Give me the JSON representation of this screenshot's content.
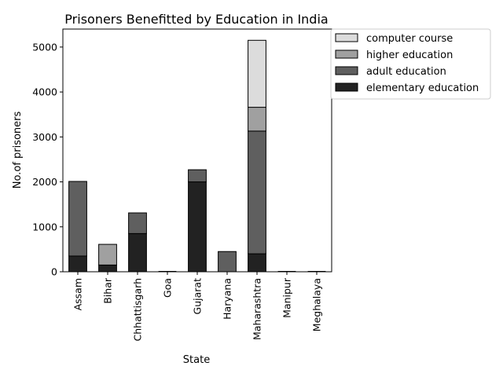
{
  "chart_data": {
    "type": "bar",
    "stacked": true,
    "title": "Prisoners Benefitted by Education in India",
    "xlabel": "State",
    "ylabel": "No.of prisoners",
    "categories": [
      "Assam",
      "Bihar",
      "Chhattisgarh",
      "Goa",
      "Gujarat",
      "Haryana",
      "Maharashtra",
      "Manipur",
      "Meghalaya"
    ],
    "ylim": [
      0,
      5400
    ],
    "yticks": [
      0,
      1000,
      2000,
      3000,
      4000,
      5000
    ],
    "grid": false,
    "legend_position": "outside-top-right",
    "series": [
      {
        "name": "elementary education",
        "color": "#222222",
        "values": [
          350,
          150,
          850,
          0,
          2000,
          0,
          400,
          0,
          0
        ]
      },
      {
        "name": "adult education",
        "color": "#5f5f5f",
        "values": [
          1660,
          0,
          460,
          0,
          270,
          450,
          2730,
          0,
          0
        ]
      },
      {
        "name": "higher education",
        "color": "#a0a0a0",
        "values": [
          0,
          460,
          0,
          0,
          0,
          0,
          530,
          0,
          0
        ]
      },
      {
        "name": "computer course",
        "color": "#dcdcdc",
        "values": [
          0,
          0,
          0,
          0,
          0,
          0,
          1490,
          0,
          0
        ]
      }
    ],
    "legend_order": [
      "computer course",
      "higher education",
      "adult education",
      "elementary education"
    ]
  }
}
